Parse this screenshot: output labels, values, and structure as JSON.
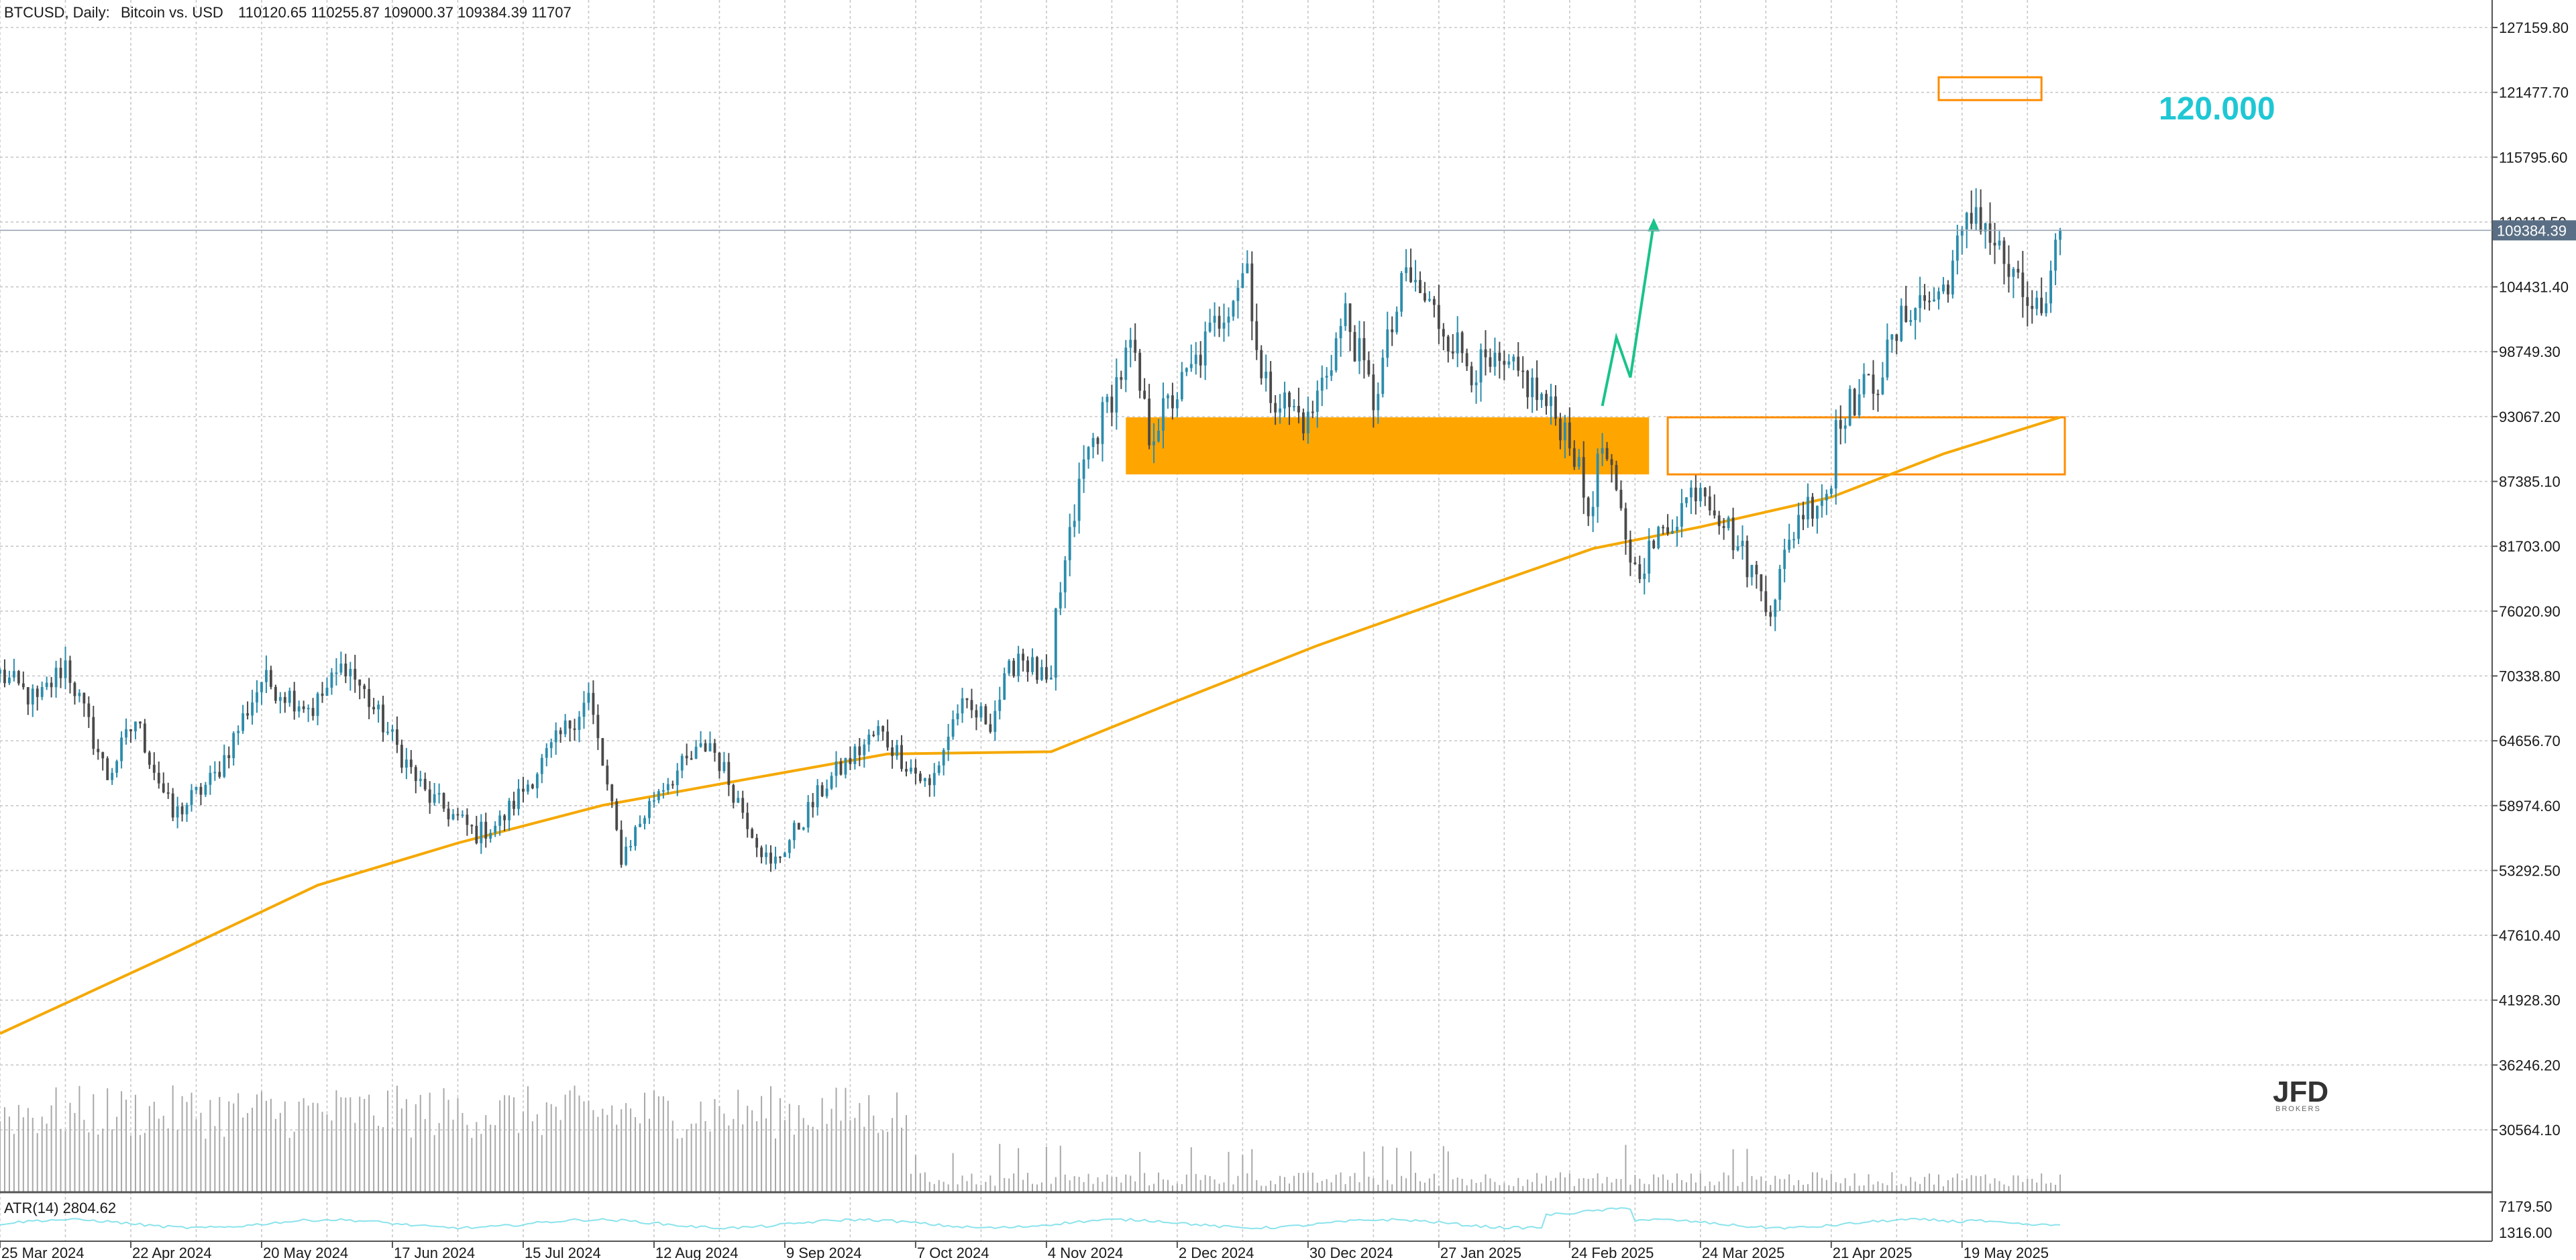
{
  "header": {
    "symbol": "BTCUSD, Daily:",
    "description": "Bitcoin vs. USD",
    "ohlcv": "110120.65 110255.87 109000.37 109384.39 11707"
  },
  "indicator": {
    "label": "ATR(14) 2804.62",
    "axis_ticks": [
      "7179.50",
      "1316.00"
    ]
  },
  "logo": {
    "name": "JFD",
    "sub": "BROKERS"
  },
  "annotation": {
    "target_label": "120.000"
  },
  "colors": {
    "bull_candle": "#2c8cac",
    "bear_candle": "#4a4a4a",
    "moving_average": "#f5a800",
    "zone_fill": "#ffa500",
    "zone_outline": "#ff8c00",
    "arrow": "#19c38a",
    "target_text": "#1fc7d4",
    "volume": "#a8a8a8",
    "atr_line": "#8be3ec",
    "last_price_badge": "#5a6f85"
  },
  "chart_data": {
    "type": "candlestick",
    "title": "BTCUSD, Daily: Bitcoin vs. USD",
    "y_axis_ticks": [
      127159.8,
      121477.7,
      115795.6,
      110113.5,
      104431.4,
      98749.3,
      93067.2,
      87385.1,
      81703.0,
      76020.9,
      70338.8,
      64656.7,
      58974.6,
      53292.5,
      47610.4,
      41928.3,
      36246.2,
      30564.1
    ],
    "y_axis_tick_labels": [
      "127159.80",
      "121477.70",
      "115795.60",
      "110113.50",
      "104431.40",
      "98749.30",
      "93067.20",
      "87385.10",
      "81703.00",
      "76020.90",
      "70338.80",
      "64656.70",
      "58974.60",
      "53292.50",
      "47610.40",
      "41928.30",
      "36246.20",
      "30564.10"
    ],
    "ylim": [
      27800,
      130000
    ],
    "x_axis_labels": [
      "25 Mar 2024",
      "22 Apr 2024",
      "20 May 2024",
      "17 Jun 2024",
      "15 Jul 2024",
      "12 Aug 2024",
      "9 Sep 2024",
      "7 Oct 2024",
      "4 Nov 2024",
      "2 Dec 2024",
      "30 Dec 2024",
      "27 Jan 2025",
      "24 Feb 2025",
      "24 Mar 2025",
      "21 Apr 2025",
      "19 May 2025"
    ],
    "last_price": 109384.39,
    "last_price_label": "109384.39",
    "price_path": [
      [
        "2024-03-25",
        70500
      ],
      [
        "2024-04-02",
        68000
      ],
      [
        "2024-04-08",
        71500
      ],
      [
        "2024-04-17",
        61500
      ],
      [
        "2024-04-23",
        66500
      ],
      [
        "2024-05-01",
        58000
      ],
      [
        "2024-05-10",
        61500
      ],
      [
        "2024-05-20",
        70000
      ],
      [
        "2024-05-31",
        67500
      ],
      [
        "2024-06-07",
        71500
      ],
      [
        "2024-06-24",
        60000
      ],
      [
        "2024-07-05",
        56500
      ],
      [
        "2024-07-10",
        57500
      ],
      [
        "2024-07-29",
        68500
      ],
      [
        "2024-08-05",
        54500
      ],
      [
        "2024-08-13",
        60500
      ],
      [
        "2024-08-24",
        64500
      ],
      [
        "2024-09-06",
        53500
      ],
      [
        "2024-09-18",
        61000
      ],
      [
        "2024-09-29",
        65500
      ],
      [
        "2024-10-10",
        60500
      ],
      [
        "2024-10-16",
        67500
      ],
      [
        "2024-10-23",
        66500
      ],
      [
        "2024-10-29",
        72500
      ],
      [
        "2024-11-05",
        69000
      ],
      [
        "2024-11-06",
        75500
      ],
      [
        "2024-11-12",
        89000
      ],
      [
        "2024-11-22",
        99000
      ],
      [
        "2024-11-26",
        91500
      ],
      [
        "2024-12-05",
        97000
      ],
      [
        "2024-12-17",
        106500
      ],
      [
        "2024-12-20",
        96000
      ],
      [
        "2024-12-30",
        92500
      ],
      [
        "2025-01-07",
        102000
      ],
      [
        "2025-01-13",
        94500
      ],
      [
        "2025-01-20",
        105500
      ],
      [
        "2025-01-27",
        101500
      ],
      [
        "2025-02-03",
        97500
      ],
      [
        "2025-02-14",
        96500
      ],
      [
        "2025-02-24",
        91500
      ],
      [
        "2025-02-28",
        84500
      ],
      [
        "2025-03-03",
        90500
      ],
      [
        "2025-03-10",
        79500
      ],
      [
        "2025-03-17",
        83500
      ],
      [
        "2025-03-24",
        87500
      ],
      [
        "2025-03-31",
        82500
      ],
      [
        "2025-04-08",
        76500
      ],
      [
        "2025-04-14",
        84500
      ],
      [
        "2025-04-21",
        87000
      ],
      [
        "2025-04-22",
        93000
      ],
      [
        "2025-05-01",
        96500
      ],
      [
        "2025-05-08",
        103000
      ],
      [
        "2025-05-14",
        103500
      ],
      [
        "2025-05-22",
        111500
      ],
      [
        "2025-05-31",
        104000
      ],
      [
        "2025-06-06",
        101500
      ],
      [
        "2025-06-09",
        109500
      ]
    ],
    "moving_average_path": [
      [
        "2024-03-25",
        39000
      ],
      [
        "2024-05-01",
        46000
      ],
      [
        "2024-06-01",
        52000
      ],
      [
        "2024-07-01",
        55700
      ],
      [
        "2024-08-01",
        59000
      ],
      [
        "2024-09-01",
        61300
      ],
      [
        "2024-10-01",
        63500
      ],
      [
        "2024-11-05",
        63700
      ],
      [
        "2024-12-01",
        68000
      ],
      [
        "2025-01-01",
        73000
      ],
      [
        "2025-02-01",
        77500
      ],
      [
        "2025-03-01",
        81500
      ],
      [
        "2025-03-24",
        83400
      ],
      [
        "2025-04-21",
        86000
      ],
      [
        "2025-05-15",
        89800
      ],
      [
        "2025-06-09",
        93000
      ]
    ],
    "zones": [
      {
        "name": "support-resistance-zone-filled",
        "from": "2024-11-21",
        "to": "2025-03-13",
        "low": 88000,
        "high": 93000,
        "style": "filled"
      },
      {
        "name": "support-resistance-zone-outline",
        "from": "2025-03-17",
        "to": "2025-06-10",
        "low": 88000,
        "high": 93000,
        "style": "outline"
      },
      {
        "name": "target-box",
        "from": "2025-05-14",
        "to": "2025-06-05",
        "low": 120800,
        "high": 122800,
        "style": "outline"
      }
    ],
    "projection_arrow": [
      [
        "2025-03-03",
        94000
      ],
      [
        "2025-03-06",
        100000
      ],
      [
        "2025-03-09",
        96500
      ],
      [
        "2025-03-14",
        110000
      ]
    ],
    "volume_max": 100,
    "atr_value": 2804.62
  }
}
